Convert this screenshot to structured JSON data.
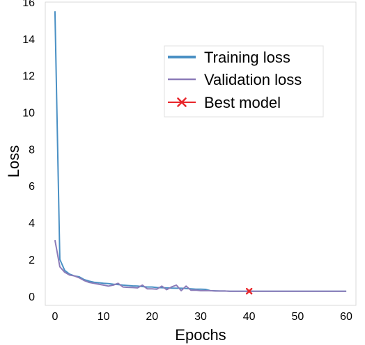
{
  "chart_data": {
    "type": "line",
    "xlabel": "Epochs",
    "ylabel": "Loss",
    "xlim": [
      -2,
      62
    ],
    "ylim": [
      -0.5,
      16
    ],
    "xticks": [
      0,
      10,
      20,
      30,
      40,
      50,
      60
    ],
    "yticks": [
      0,
      2,
      4,
      6,
      8,
      10,
      12,
      14,
      16
    ],
    "grid": false,
    "legend_placement": "upper-right",
    "series": [
      {
        "name": "Training loss",
        "color": "#4a90c4",
        "x": [
          0,
          1,
          2,
          3,
          4,
          5,
          6,
          7,
          8,
          9,
          10,
          11,
          12,
          13,
          14,
          15,
          16,
          17,
          18,
          19,
          20,
          21,
          22,
          23,
          24,
          25,
          26,
          27,
          28,
          29,
          30,
          31,
          32,
          33,
          34,
          35,
          36,
          37,
          38,
          39,
          40,
          41,
          42,
          43,
          44,
          45,
          46,
          47,
          48,
          49,
          50,
          51,
          52,
          53,
          54,
          55,
          56,
          57,
          58,
          59,
          60
        ],
        "y": [
          15.5,
          2.0,
          1.4,
          1.2,
          1.1,
          1.05,
          0.9,
          0.82,
          0.76,
          0.73,
          0.7,
          0.68,
          0.65,
          0.63,
          0.6,
          0.58,
          0.56,
          0.55,
          0.52,
          0.5,
          0.5,
          0.47,
          0.46,
          0.45,
          0.44,
          0.43,
          0.43,
          0.42,
          0.4,
          0.38,
          0.38,
          0.37,
          0.3,
          0.29,
          0.28,
          0.28,
          0.27,
          0.27,
          0.27,
          0.27,
          0.27,
          0.27,
          0.27,
          0.27,
          0.27,
          0.27,
          0.27,
          0.27,
          0.27,
          0.27,
          0.27,
          0.27,
          0.27,
          0.27,
          0.27,
          0.27,
          0.27,
          0.27,
          0.27,
          0.27,
          0.27
        ]
      },
      {
        "name": "Validation loss",
        "color": "#8b7bb8",
        "x": [
          0,
          1,
          2,
          3,
          4,
          5,
          6,
          7,
          8,
          9,
          10,
          11,
          12,
          13,
          14,
          15,
          16,
          17,
          18,
          19,
          20,
          21,
          22,
          23,
          24,
          25,
          26,
          27,
          28,
          29,
          30,
          31,
          32,
          33,
          34,
          35,
          36,
          37,
          38,
          39,
          40,
          41,
          42,
          43,
          44,
          45,
          46,
          47,
          48,
          49,
          50,
          51,
          52,
          53,
          54,
          55,
          56,
          57,
          58,
          59,
          60
        ],
        "y": [
          3.05,
          1.6,
          1.3,
          1.15,
          1.1,
          1.0,
          0.85,
          0.75,
          0.7,
          0.65,
          0.6,
          0.55,
          0.6,
          0.7,
          0.5,
          0.48,
          0.47,
          0.45,
          0.6,
          0.4,
          0.4,
          0.38,
          0.55,
          0.35,
          0.5,
          0.6,
          0.3,
          0.55,
          0.32,
          0.33,
          0.3,
          0.3,
          0.3,
          0.28,
          0.28,
          0.28,
          0.27,
          0.27,
          0.27,
          0.27,
          0.27,
          0.27,
          0.27,
          0.27,
          0.27,
          0.27,
          0.27,
          0.27,
          0.27,
          0.27,
          0.27,
          0.27,
          0.27,
          0.27,
          0.27,
          0.27,
          0.27,
          0.27,
          0.27,
          0.27,
          0.27
        ]
      }
    ],
    "markers": [
      {
        "name": "Best model",
        "color": "#e8262b",
        "x": 40,
        "y": 0.27,
        "marker": "x"
      }
    ]
  }
}
